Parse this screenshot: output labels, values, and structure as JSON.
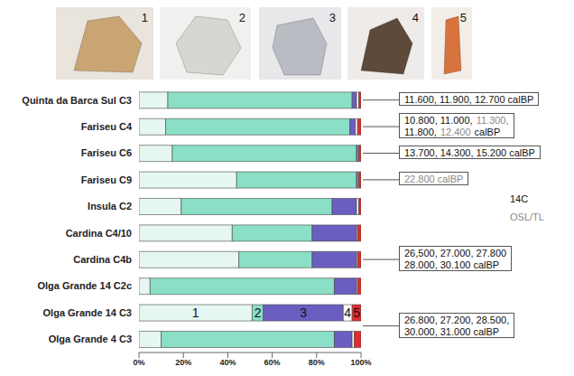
{
  "artifacts": [
    {
      "label": "1"
    },
    {
      "label": "2"
    },
    {
      "label": "3"
    },
    {
      "label": "4"
    },
    {
      "label": "5"
    }
  ],
  "chart_data": {
    "type": "bar",
    "orientation": "horizontal",
    "stacked": true,
    "grid": false,
    "categories": [
      "Quinta da Barca Sul C3",
      "Fariseu C4",
      "Fariseu C6",
      "Fariseu C9",
      "Insula C2",
      "Cardina C4/10",
      "Cardina C4b",
      "Olga Grande 14 C2c",
      "Olga Grande 14 C3",
      "Olga Grande 4 C3"
    ],
    "series": [
      {
        "name": "1",
        "color": "#e6f7f1",
        "values": [
          13,
          12,
          15,
          44,
          19,
          42,
          45,
          5,
          51,
          10
        ]
      },
      {
        "name": "2",
        "color": "#8adfc6",
        "values": [
          83,
          83,
          83,
          54,
          68,
          36,
          33,
          83,
          5,
          78
        ]
      },
      {
        "name": "3",
        "color": "#6a5fc0",
        "values": [
          2,
          2.5,
          0.5,
          0.5,
          11,
          20,
          20,
          10,
          36,
          8
        ]
      },
      {
        "name": "4",
        "color": "#ffffff",
        "values": [
          1,
          1,
          0.5,
          0.5,
          1,
          0.5,
          0.5,
          0.5,
          4,
          1
        ]
      },
      {
        "name": "5",
        "color": "#e52a2a",
        "values": [
          1,
          1.5,
          1,
          1,
          1,
          1.5,
          1.5,
          1.5,
          4,
          3
        ]
      }
    ],
    "xlim": [
      0,
      100
    ],
    "xticks": [
      {
        "value": 0,
        "label": "0%"
      },
      {
        "value": 20,
        "label": "20%"
      },
      {
        "value": 40,
        "label": "40%"
      },
      {
        "value": 60,
        "label": "60%"
      },
      {
        "value": 80,
        "label": "80%"
      },
      {
        "value": 100,
        "label": "100%"
      }
    ],
    "annotations": [
      {
        "text": "1",
        "category": "Olga Grande 14 C3",
        "series": "1"
      },
      {
        "text": "2",
        "category": "Olga Grande 14 C3",
        "series": "2"
      },
      {
        "text": "3",
        "category": "Olga Grande 14 C3",
        "series": "3"
      },
      {
        "text": "4",
        "category": "Olga Grande 14 C3",
        "series": "4"
      },
      {
        "text": "5",
        "category": "Olga Grande 14 C3",
        "series": "5"
      }
    ]
  },
  "dates": {
    "methods": [
      {
        "name": "14C",
        "color": "#111111"
      },
      {
        "name": "OSL/TL",
        "color": "#8a8a8a"
      }
    ],
    "boxes": [
      {
        "categories": [
          "Quinta da Barca Sul C3"
        ],
        "lines": [
          [
            {
              "text": "11.600, 11.900, 12.700 calBP",
              "method": "14C"
            }
          ]
        ]
      },
      {
        "categories": [
          "Fariseu C4"
        ],
        "lines": [
          [
            {
              "text": "10.800, 11.000,",
              "method": "14C"
            },
            {
              "text": "11.300,",
              "method": "OSL/TL"
            }
          ],
          [
            {
              "text": "11.800,",
              "method": "14C"
            },
            {
              "text": "12.400",
              "method": "OSL/TL"
            },
            {
              "text": "calBP",
              "method": "14C"
            }
          ]
        ]
      },
      {
        "categories": [
          "Fariseu C6"
        ],
        "lines": [
          [
            {
              "text": "13.700, 14.300, 15.200 calBP",
              "method": "14C"
            }
          ]
        ]
      },
      {
        "categories": [
          "Fariseu C9"
        ],
        "lines": [
          [
            {
              "text": "22.800 calBP",
              "method": "OSL/TL"
            }
          ]
        ]
      },
      {
        "categories": [
          "Cardina C4/10",
          "Cardina C4b",
          "Olga Grande 14 C2c"
        ],
        "lines": [
          [
            {
              "text": "26,500, 27.000, 27.800",
              "method": "14C"
            }
          ],
          [
            {
              "text": "28.000, 30.100 calBP",
              "method": "14C"
            }
          ]
        ]
      },
      {
        "categories": [
          "Olga Grande 14 C3",
          "Olga Grande 4 C3"
        ],
        "lines": [
          [
            {
              "text": "26.800, 27.200, 28.500,",
              "method": "14C"
            }
          ],
          [
            {
              "text": "30.000, 31.000 calBP",
              "method": "14C"
            }
          ]
        ]
      }
    ]
  }
}
